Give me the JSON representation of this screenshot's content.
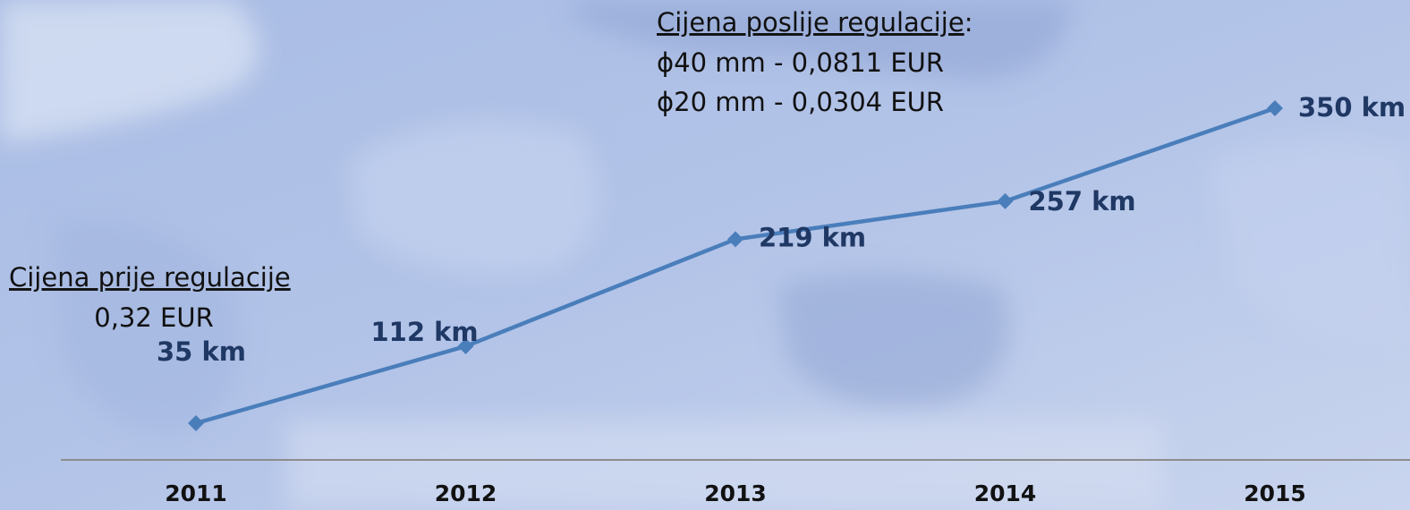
{
  "chart_data": {
    "type": "line",
    "categories": [
      "2011",
      "2012",
      "2013",
      "2014",
      "2015"
    ],
    "series": [
      {
        "color": "#4a7ebb",
        "values": [
          35,
          112,
          219,
          257,
          350
        ],
        "value_labels": [
          "35 km",
          "112  km",
          "219 km",
          "257  km",
          "350 km"
        ]
      }
    ],
    "annotations": {
      "before": {
        "heading": "Cijena prije regulacije",
        "price": "0,32 EUR"
      },
      "after": {
        "heading": "Cijena poslije regulacije",
        "suffix": ":",
        "lines": [
          "ϕ40 mm - 0,0811 EUR",
          "ϕ20 mm - 0,0304 EUR"
        ]
      }
    }
  }
}
